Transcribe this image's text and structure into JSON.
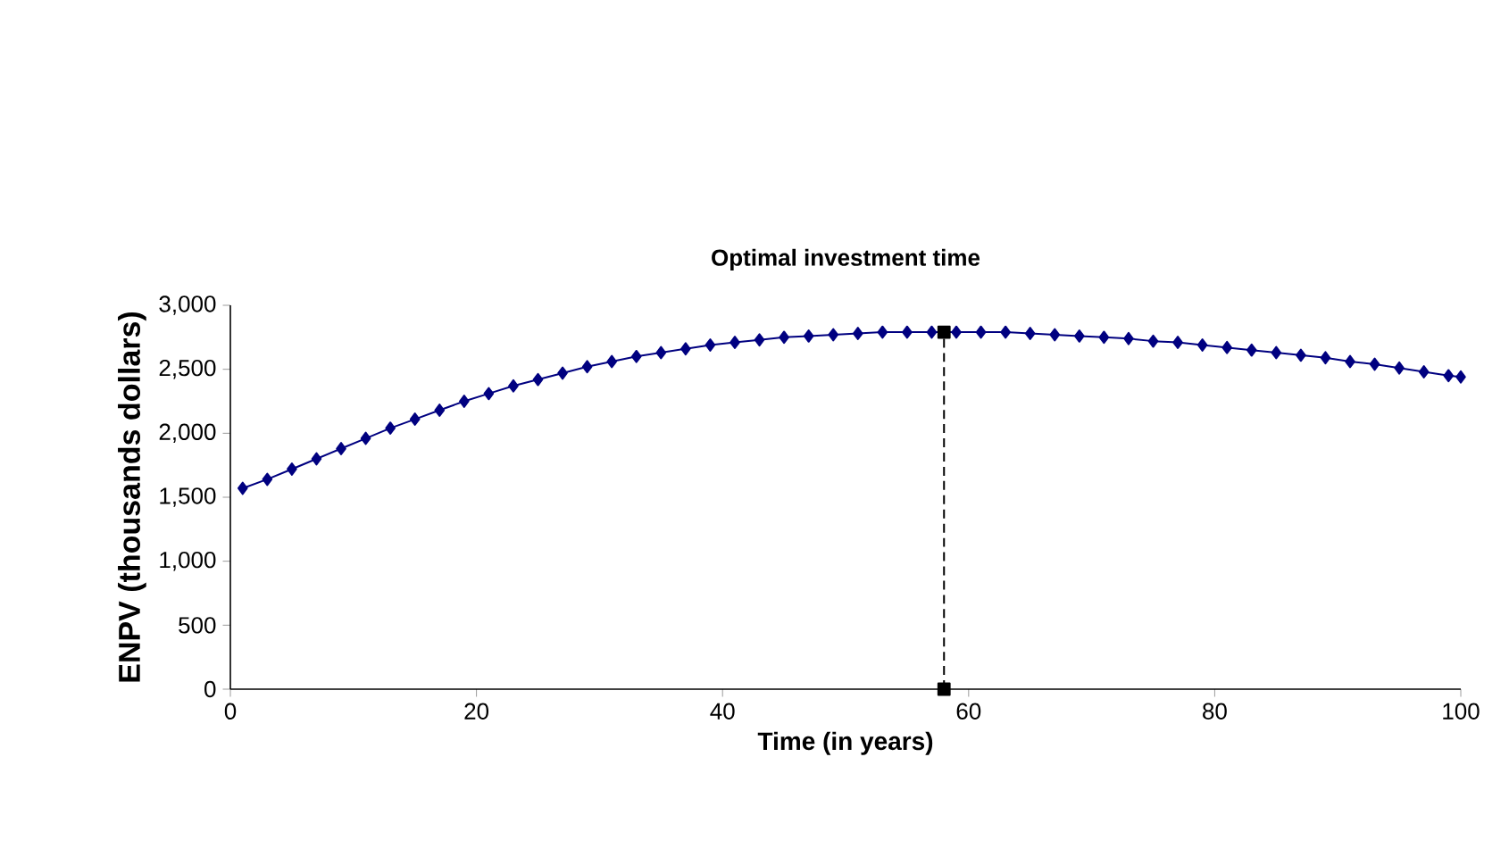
{
  "chart_data": {
    "type": "line",
    "title": "Optimal investment  time",
    "xlabel": "Time (in years)",
    "ylabel": "ENPV (thousands dollars)",
    "xlim": [
      0,
      100
    ],
    "xticks": [
      0,
      20,
      40,
      60,
      80,
      100
    ],
    "ylim": [
      0,
      3000
    ],
    "yticks": [
      {
        "value": 0,
        "label": "0"
      },
      {
        "value": 500,
        "label": "500"
      },
      {
        "value": 1000,
        "label": "1,000"
      },
      {
        "value": 1500,
        "label": "1,500"
      },
      {
        "value": 2000,
        "label": "2,000"
      },
      {
        "value": 2500,
        "label": "2,500"
      },
      {
        "value": 3000,
        "label": "3,000"
      }
    ],
    "grid": false,
    "series": [
      {
        "color": "#000080",
        "marker": "diamond",
        "line_style": "solid",
        "x": [
          1,
          3,
          5,
          7,
          9,
          11,
          13,
          15,
          17,
          19,
          21,
          23,
          25,
          27,
          29,
          31,
          33,
          35,
          37,
          39,
          41,
          43,
          45,
          47,
          49,
          51,
          53,
          55,
          57,
          59,
          61,
          63,
          65,
          67,
          69,
          71,
          73,
          75,
          77,
          79,
          81,
          83,
          85,
          87,
          89,
          91,
          93,
          95,
          97,
          99,
          100
        ],
        "values": [
          1570,
          1640,
          1720,
          1800,
          1880,
          1960,
          2040,
          2110,
          2180,
          2250,
          2310,
          2370,
          2420,
          2470,
          2520,
          2560,
          2600,
          2630,
          2660,
          2690,
          2710,
          2730,
          2750,
          2760,
          2770,
          2780,
          2790,
          2790,
          2790,
          2790,
          2790,
          2790,
          2780,
          2770,
          2760,
          2750,
          2740,
          2720,
          2710,
          2690,
          2670,
          2650,
          2630,
          2610,
          2590,
          2560,
          2540,
          2510,
          2480,
          2450,
          2440
        ]
      },
      {
        "color": "#000000",
        "marker": "square",
        "line_style": "dashed",
        "x": [
          58,
          58
        ],
        "values": [
          0,
          2790
        ]
      }
    ]
  }
}
